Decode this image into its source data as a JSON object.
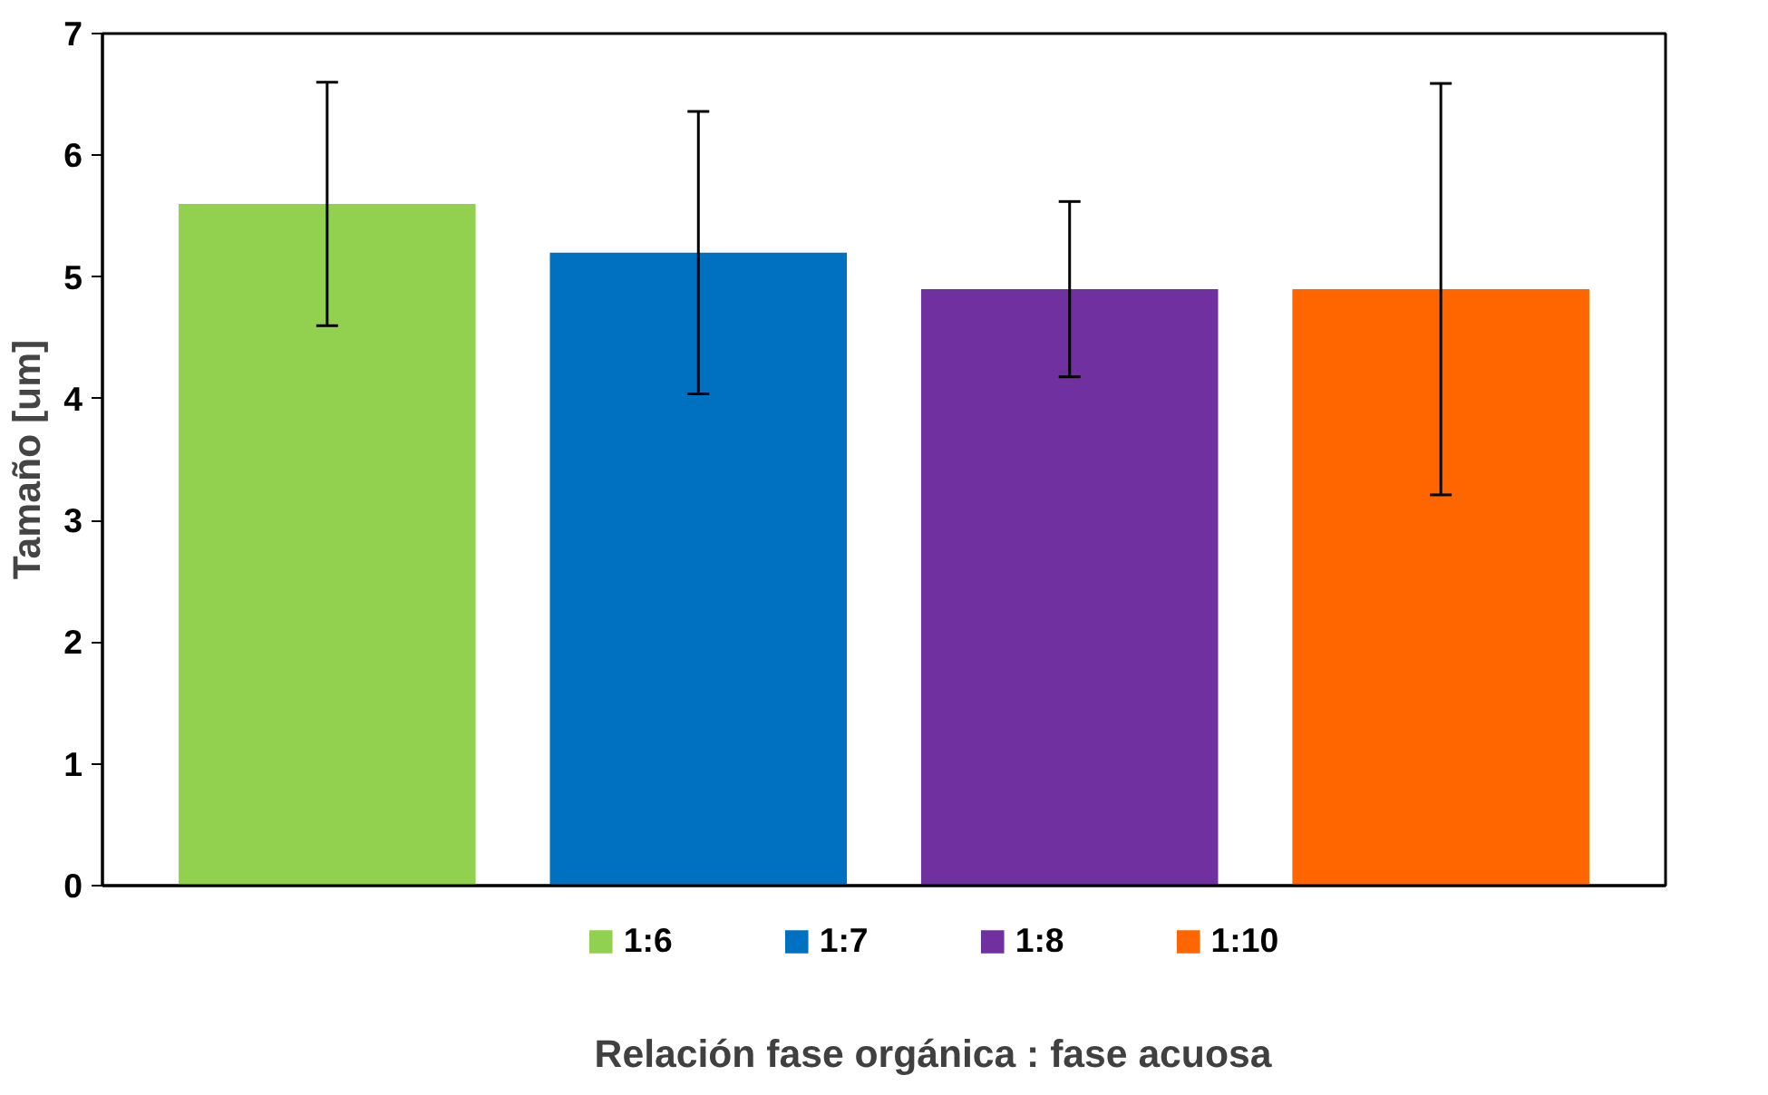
{
  "chart_data": {
    "type": "bar",
    "xlabel": "Relación fase orgánica : fase acuosa",
    "ylabel": "Tamaño [um]",
    "categories": [
      null
    ],
    "series": [
      {
        "name": "1:6",
        "color": "#92d050",
        "values": [
          5.6
        ],
        "errors": [
          1.0
        ]
      },
      {
        "name": "1:7",
        "color": "#0070c0",
        "values": [
          5.2
        ],
        "errors": [
          1.16
        ]
      },
      {
        "name": "1:8",
        "color": "#7030a0",
        "values": [
          4.9
        ],
        "errors": [
          0.72
        ]
      },
      {
        "name": "1:10",
        "color": "#ff6600",
        "values": [
          4.9
        ],
        "errors": [
          1.69
        ]
      }
    ],
    "ylim": [
      0,
      7
    ],
    "yticks": [
      0,
      1,
      2,
      3,
      4,
      5,
      6,
      7
    ],
    "grid": false,
    "legend": "bottom",
    "tick_labels": "y"
  }
}
